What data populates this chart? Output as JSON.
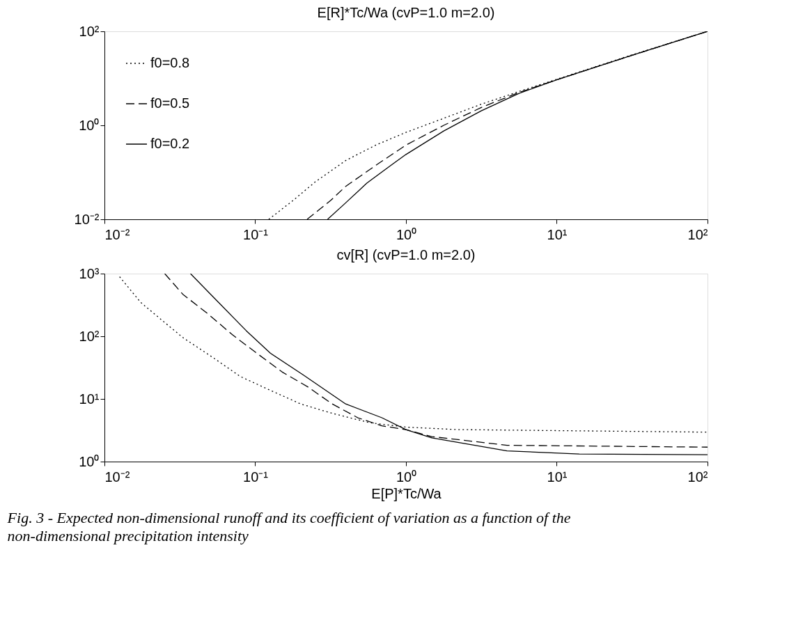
{
  "chart_data": [
    {
      "type": "line",
      "title": "E[R]*Tc/Wa (cvP=1.0 m=2.0)",
      "log": "xy",
      "grid": false,
      "legend": "top left",
      "marker": "none",
      "xlim": [
        0.01,
        100
      ],
      "ylim": [
        0.01,
        100
      ],
      "xticks": [
        {
          "value": 0.01,
          "label": "10⁻²"
        },
        {
          "value": 0.1,
          "label": "10⁻¹"
        },
        {
          "value": 1,
          "label": "10⁰"
        },
        {
          "value": 10,
          "label": "10¹"
        },
        {
          "value": 100,
          "label": "10²"
        }
      ],
      "yticks": [
        {
          "value": 0.01,
          "label": "10⁻²"
        },
        {
          "value": 1,
          "label": "10⁰"
        },
        {
          "value": 100,
          "label": "10²"
        }
      ],
      "series": [
        {
          "name": "f0=0.8",
          "color": "#000000",
          "line_style": "dotted",
          "x": [
            0.123,
            0.178,
            0.251,
            0.398,
            0.631,
            1,
            1.78,
            3.16,
            5.62,
            10,
            31.6,
            100
          ],
          "values": [
            0.01,
            0.0251,
            0.0631,
            0.178,
            0.38,
            0.708,
            1.41,
            2.82,
            5.25,
            9.55,
            31.6,
            100
          ]
        },
        {
          "name": "f0=0.5",
          "color": "#000000",
          "line_style": "dashed",
          "x": [
            0.221,
            0.316,
            0.398,
            0.631,
            1,
            1.78,
            3.16,
            5.62,
            10,
            31.6,
            100
          ],
          "values": [
            0.01,
            0.0251,
            0.0501,
            0.141,
            0.38,
            1,
            2.4,
            5.01,
            9.33,
            30.9,
            100
          ]
        },
        {
          "name": "f0=0.2",
          "color": "#000000",
          "line_style": "solid",
          "x": [
            0.302,
            0.398,
            0.55,
            0.794,
            1,
            1.78,
            3.16,
            5.62,
            10,
            31.6,
            100
          ],
          "values": [
            0.01,
            0.0224,
            0.0589,
            0.141,
            0.24,
            0.759,
            2.04,
            4.79,
            9.33,
            30.9,
            100
          ]
        }
      ]
    },
    {
      "type": "line",
      "title": "cv[R] (cvP=1.0 m=2.0)",
      "xlabel": "E[P]*Tc/Wa",
      "log": "xy",
      "grid": false,
      "legend": false,
      "marker": "none",
      "xlim": [
        0.01,
        100
      ],
      "ylim": [
        1,
        1000
      ],
      "xticks": [
        {
          "value": 0.01,
          "label": "10⁻²"
        },
        {
          "value": 0.1,
          "label": "10⁻¹"
        },
        {
          "value": 1,
          "label": "10⁰"
        },
        {
          "value": 10,
          "label": "10¹"
        },
        {
          "value": 100,
          "label": "10²"
        }
      ],
      "yticks": [
        {
          "value": 1,
          "label": "10⁰"
        },
        {
          "value": 10,
          "label": "10¹"
        },
        {
          "value": 100,
          "label": "10²"
        },
        {
          "value": 1000,
          "label": "10³"
        }
      ],
      "annotations": [
        "Fig. 3 - Expected non-dimensional runoff and its coefficient of variation as a function of the non-dimensional precipitation intensity"
      ],
      "series": [
        {
          "color": "#000000",
          "line_style": "dotted",
          "x": [
            0.0126,
            0.0174,
            0.0245,
            0.0331,
            0.0525,
            0.0794,
            0.123,
            0.2,
            0.324,
            0.575,
            1,
            2.19,
            100
          ],
          "values": [
            891,
            347,
            174,
            95.5,
            45.7,
            22.9,
            14.1,
            8.32,
            5.89,
            4.17,
            3.55,
            3.24,
            2.95
          ]
        },
        {
          "color": "#000000",
          "line_style": "dashed",
          "x": [
            0.0251,
            0.0331,
            0.049,
            0.0708,
            0.105,
            0.151,
            0.224,
            0.324,
            0.479,
            0.692,
            1,
            1.48,
            4.68,
            100
          ],
          "values": [
            1000,
            468,
            224,
            105,
            51.3,
            26.9,
            15.5,
            8.32,
            5.01,
            3.72,
            3.24,
            2.51,
            1.82,
            1.7
          ]
        },
        {
          "color": "#000000",
          "line_style": "solid",
          "x": [
            0.0372,
            0.055,
            0.0871,
            0.126,
            0.209,
            0.398,
            0.692,
            1,
            1.48,
            4.68,
            14.1,
            100
          ],
          "values": [
            1000,
            380,
            123,
            53.7,
            24,
            8.32,
            5.01,
            3.24,
            2.4,
            1.48,
            1.32,
            1.29
          ]
        }
      ]
    }
  ]
}
